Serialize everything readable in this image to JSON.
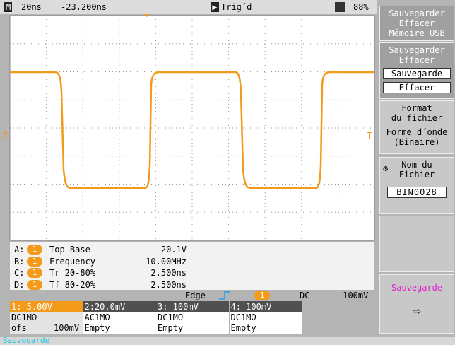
{
  "status": {
    "mode": "M",
    "timebase": "20ns",
    "delay": "-23.200ns",
    "trigger": "Trig´d",
    "battery": "88%"
  },
  "trigger_marker": "T",
  "measurements": [
    {
      "slot": "A:",
      "channel": "1",
      "label": "Top-Base",
      "value": "20.1V"
    },
    {
      "slot": "B:",
      "channel": "1",
      "label": "Frequency",
      "value": "10.00MHz"
    },
    {
      "slot": "C:",
      "channel": "1",
      "label": "Tr 20-80%",
      "value": "2.500ns"
    },
    {
      "slot": "D:",
      "channel": "1",
      "label": "Tf 80-20%",
      "value": "2.500ns"
    }
  ],
  "trigger": {
    "type": "Edge",
    "channel": "1",
    "coupling": "DC",
    "level": "-100mV"
  },
  "channels": [
    {
      "header": "1: 5.00V",
      "coupling": "DC1MΩ",
      "probe": "ofs",
      "offset": "100mV"
    },
    {
      "header": "2:20.0mV",
      "coupling": "AC1MΩ",
      "probe": "Empty"
    },
    {
      "header": "3: 100mV",
      "coupling": "DC1MΩ",
      "probe": "Empty"
    },
    {
      "header": "4: 100mV",
      "coupling": "DC1MΩ",
      "probe": "Empty"
    }
  ],
  "menu": [
    {
      "lines": [
        "Sauvegarder",
        "Effacer",
        "Mémoire USB"
      ]
    },
    {
      "lines": [
        "Sauvegarder",
        "Effacer"
      ],
      "options": [
        "Sauvegarde",
        "Effacer"
      ]
    },
    {
      "lines": [
        "Format",
        "du fichier",
        "Forme d´onde",
        "(Binaire)"
      ]
    },
    {
      "lines": [
        "Nom du",
        "Fichier"
      ],
      "field": "BIN0028"
    },
    {
      "lines": []
    },
    {
      "lines": [
        "Sauvegarde"
      ]
    }
  ],
  "footer": "Sauvegarde"
}
